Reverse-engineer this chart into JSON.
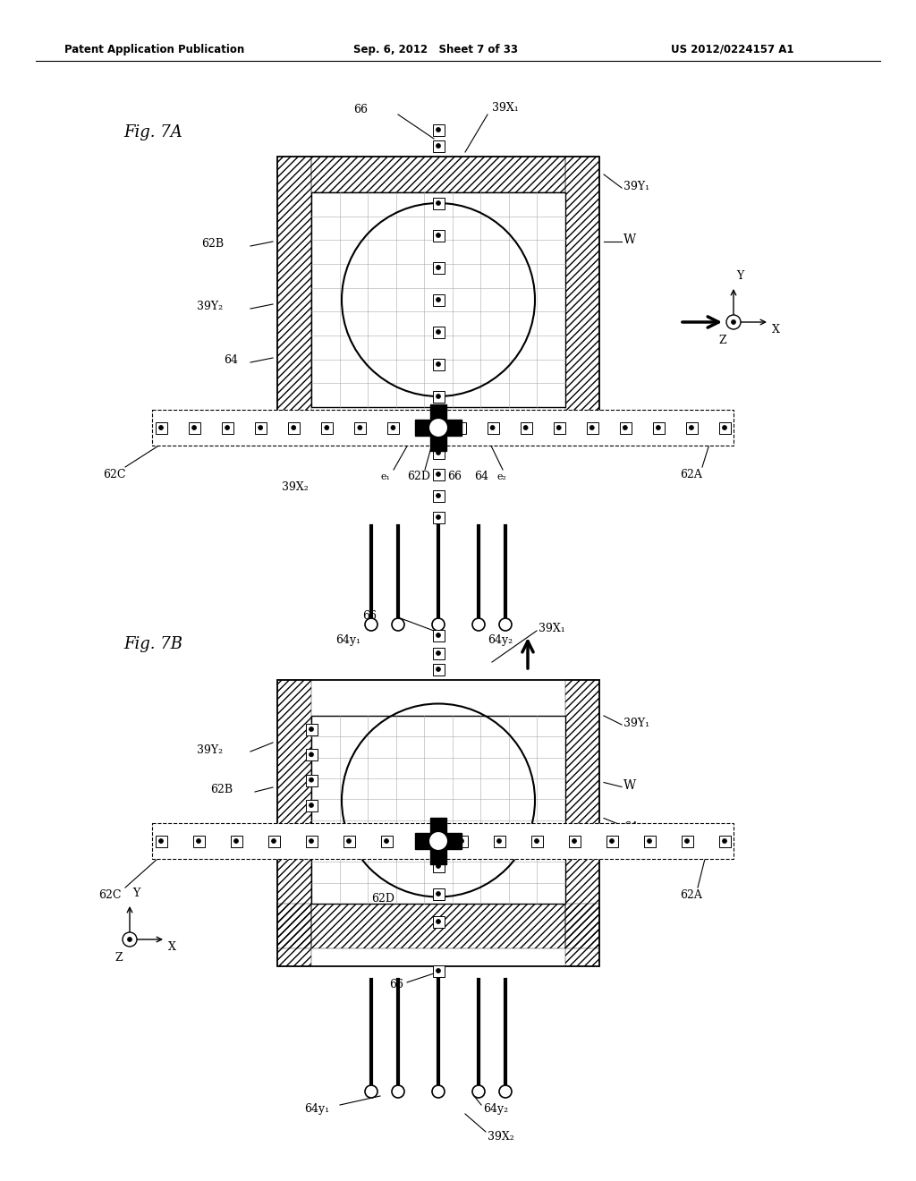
{
  "header_left": "Patent Application Publication",
  "header_mid": "Sep. 6, 2012   Sheet 7 of 33",
  "header_right": "US 2012/0224157 A1",
  "fig7A_label": "Fig. 7A",
  "fig7B_label": "Fig. 7B",
  "bg_color": "#ffffff"
}
